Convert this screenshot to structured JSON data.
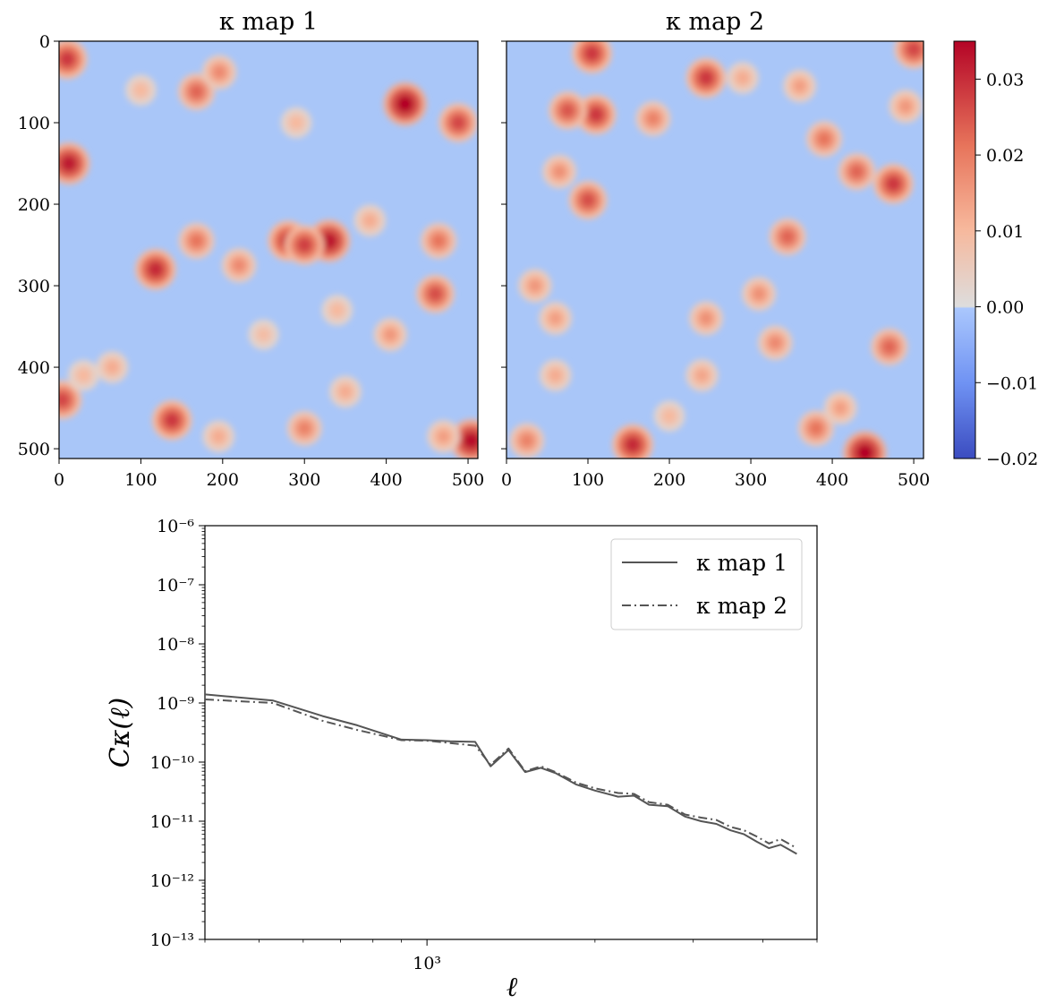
{
  "colors": {
    "cmap_low": "#3b4cc0",
    "cmap_mid": "#dddddd",
    "cmap_high": "#b40426",
    "line": "#555555"
  },
  "chart_data": [
    {
      "type": "heatmap",
      "title": "κ map 1",
      "xlim": [
        0,
        512
      ],
      "ylim": [
        0,
        512
      ],
      "y_inverted": true,
      "xticks": [
        "0",
        "100",
        "200",
        "300",
        "400",
        "500"
      ],
      "yticks": [
        "0",
        "100",
        "200",
        "300",
        "400",
        "500"
      ],
      "hotspots": [
        {
          "x": 423,
          "y": 77,
          "v": 0.035
        },
        {
          "x": 12,
          "y": 150,
          "v": 0.032
        },
        {
          "x": 10,
          "y": 22,
          "v": 0.028
        },
        {
          "x": 504,
          "y": 490,
          "v": 0.034
        },
        {
          "x": 330,
          "y": 245,
          "v": 0.033
        },
        {
          "x": 280,
          "y": 245,
          "v": 0.029
        },
        {
          "x": 300,
          "y": 250,
          "v": 0.027
        },
        {
          "x": 118,
          "y": 280,
          "v": 0.03
        },
        {
          "x": 138,
          "y": 465,
          "v": 0.028
        },
        {
          "x": 4,
          "y": 440,
          "v": 0.026
        },
        {
          "x": 168,
          "y": 62,
          "v": 0.022
        },
        {
          "x": 196,
          "y": 38,
          "v": 0.017
        },
        {
          "x": 488,
          "y": 100,
          "v": 0.026
        },
        {
          "x": 460,
          "y": 310,
          "v": 0.025
        },
        {
          "x": 464,
          "y": 245,
          "v": 0.02
        },
        {
          "x": 168,
          "y": 245,
          "v": 0.02
        },
        {
          "x": 220,
          "y": 275,
          "v": 0.017
        },
        {
          "x": 300,
          "y": 475,
          "v": 0.018
        },
        {
          "x": 380,
          "y": 220,
          "v": 0.012
        },
        {
          "x": 30,
          "y": 410,
          "v": 0.01
        },
        {
          "x": 340,
          "y": 330,
          "v": 0.01
        },
        {
          "x": 65,
          "y": 400,
          "v": 0.012
        },
        {
          "x": 405,
          "y": 360,
          "v": 0.015
        },
        {
          "x": 195,
          "y": 485,
          "v": 0.012
        },
        {
          "x": 350,
          "y": 430,
          "v": 0.012
        },
        {
          "x": 100,
          "y": 60,
          "v": 0.01
        },
        {
          "x": 290,
          "y": 100,
          "v": 0.01
        },
        {
          "x": 250,
          "y": 360,
          "v": 0.009
        },
        {
          "x": 470,
          "y": 485,
          "v": 0.014
        }
      ],
      "colorbar": {
        "range": [
          -0.02,
          0.035
        ],
        "ticks": [
          "−0.02",
          "−0.01",
          "0.00",
          "0.01",
          "0.02",
          "0.03"
        ]
      }
    },
    {
      "type": "heatmap",
      "title": "κ map 2",
      "xlim": [
        0,
        512
      ],
      "ylim": [
        0,
        512
      ],
      "y_inverted": true,
      "xticks": [
        "0",
        "100",
        "200",
        "300",
        "400",
        "500"
      ],
      "yticks": [],
      "hotspots": [
        {
          "x": 105,
          "y": 15,
          "v": 0.028
        },
        {
          "x": 110,
          "y": 90,
          "v": 0.028
        },
        {
          "x": 75,
          "y": 85,
          "v": 0.024
        },
        {
          "x": 245,
          "y": 45,
          "v": 0.028
        },
        {
          "x": 500,
          "y": 10,
          "v": 0.026
        },
        {
          "x": 440,
          "y": 505,
          "v": 0.035
        },
        {
          "x": 155,
          "y": 495,
          "v": 0.03
        },
        {
          "x": 100,
          "y": 195,
          "v": 0.025
        },
        {
          "x": 475,
          "y": 175,
          "v": 0.028
        },
        {
          "x": 430,
          "y": 160,
          "v": 0.022
        },
        {
          "x": 390,
          "y": 120,
          "v": 0.02
        },
        {
          "x": 345,
          "y": 240,
          "v": 0.022
        },
        {
          "x": 470,
          "y": 375,
          "v": 0.022
        },
        {
          "x": 380,
          "y": 475,
          "v": 0.02
        },
        {
          "x": 180,
          "y": 95,
          "v": 0.018
        },
        {
          "x": 65,
          "y": 160,
          "v": 0.016
        },
        {
          "x": 25,
          "y": 490,
          "v": 0.018
        },
        {
          "x": 360,
          "y": 55,
          "v": 0.014
        },
        {
          "x": 290,
          "y": 45,
          "v": 0.012
        },
        {
          "x": 310,
          "y": 310,
          "v": 0.016
        },
        {
          "x": 330,
          "y": 370,
          "v": 0.017
        },
        {
          "x": 60,
          "y": 340,
          "v": 0.014
        },
        {
          "x": 35,
          "y": 300,
          "v": 0.015
        },
        {
          "x": 245,
          "y": 340,
          "v": 0.016
        },
        {
          "x": 240,
          "y": 410,
          "v": 0.013
        },
        {
          "x": 410,
          "y": 450,
          "v": 0.014
        },
        {
          "x": 490,
          "y": 80,
          "v": 0.015
        },
        {
          "x": 200,
          "y": 460,
          "v": 0.01
        },
        {
          "x": 60,
          "y": 410,
          "v": 0.012
        }
      ]
    },
    {
      "type": "line",
      "xlabel": "ℓ",
      "ylabel": "Cκ(ℓ)",
      "xscale": "log",
      "yscale": "log",
      "xlim": [
        400,
        5000
      ],
      "ylim": [
        1e-13,
        1e-06
      ],
      "xticks": [
        "10³"
      ],
      "yticks": [
        "10⁻¹³",
        "10⁻¹²",
        "10⁻¹¹",
        "10⁻¹⁰",
        "10⁻⁹",
        "10⁻⁸",
        "10⁻⁷",
        "10⁻⁶"
      ],
      "legend": {
        "position": "top-right"
      },
      "series": [
        {
          "name": "κ map 1",
          "style": "solid",
          "x": [
            400,
            530,
            650,
            750,
            900,
            1000,
            1100,
            1220,
            1300,
            1400,
            1500,
            1600,
            1700,
            1850,
            2000,
            2200,
            2350,
            2500,
            2700,
            2900,
            3100,
            3300,
            3500,
            3700,
            3900,
            4100,
            4300,
            4600
          ],
          "y": [
            1.4e-09,
            1.1e-09,
            6e-10,
            4.2e-10,
            2.4e-10,
            2.35e-10,
            2.25e-10,
            2.2e-10,
            8.5e-11,
            1.6e-10,
            6.8e-11,
            8e-11,
            6.5e-11,
            4.2e-11,
            3.3e-11,
            2.6e-11,
            2.7e-11,
            1.9e-11,
            1.8e-11,
            1.2e-11,
            1e-11,
            9e-12,
            7e-12,
            6e-12,
            4.5e-12,
            3.5e-12,
            4e-12,
            2.8e-12
          ]
        },
        {
          "name": "κ map 2",
          "style": "dashdot",
          "x": [
            400,
            530,
            650,
            750,
            900,
            1000,
            1100,
            1220,
            1300,
            1400,
            1500,
            1600,
            1700,
            1850,
            2000,
            2200,
            2350,
            2500,
            2700,
            2900,
            3100,
            3300,
            3500,
            3700,
            3900,
            4100,
            4300,
            4600
          ],
          "y": [
            1.15e-09,
            1e-09,
            5e-10,
            3.5e-10,
            2.35e-10,
            2.3e-10,
            2.1e-10,
            1.9e-10,
            9e-11,
            1.7e-10,
            7e-11,
            8.5e-11,
            6.8e-11,
            4.5e-11,
            3.6e-11,
            3e-11,
            2.9e-11,
            2.1e-11,
            1.9e-11,
            1.3e-11,
            1.15e-11,
            1.05e-11,
            8e-12,
            7e-12,
            5.5e-12,
            4.2e-12,
            5e-12,
            3.5e-12
          ]
        }
      ]
    }
  ]
}
